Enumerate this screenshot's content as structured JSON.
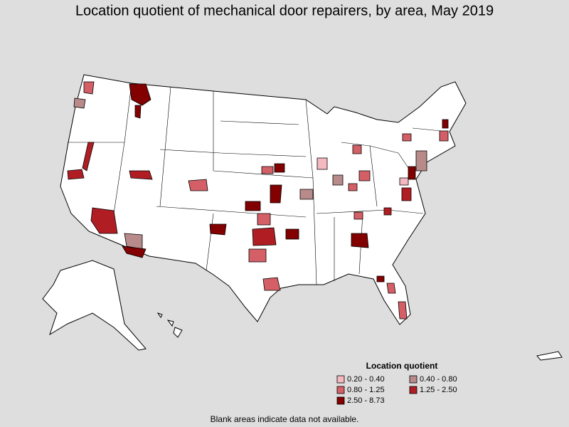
{
  "title": "Location quotient of mechanical door repairers, by area, May 2019",
  "legend": {
    "title": "Location quotient",
    "items": [
      {
        "label": "0.20 - 0.40",
        "color": "#f4b8c0"
      },
      {
        "label": "0.40 - 0.80",
        "color": "#b88a8a"
      },
      {
        "label": "0.80 - 1.25",
        "color": "#d45f66"
      },
      {
        "label": "1.25 - 2.50",
        "color": "#b01e24"
      },
      {
        "label": "2.50 - 8.73",
        "color": "#820000"
      }
    ]
  },
  "note": "Blank areas indicate data not available."
}
